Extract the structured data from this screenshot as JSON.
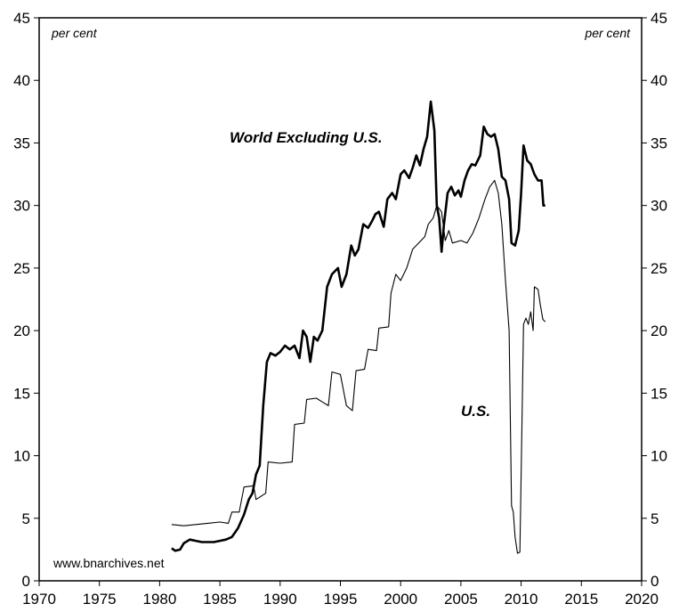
{
  "chart_data": {
    "type": "line",
    "title": "",
    "xlabel": "",
    "ylabel": "",
    "unit_left": "per cent",
    "unit_right": "per cent",
    "source": "www.bnarchives.net",
    "xlim": [
      1970,
      2020
    ],
    "ylim": [
      0,
      45
    ],
    "x_ticks": [
      1970,
      1975,
      1980,
      1985,
      1990,
      1995,
      2000,
      2005,
      2010,
      2015,
      2020
    ],
    "y_ticks": [
      0,
      5,
      10,
      15,
      20,
      25,
      30,
      35,
      40,
      45
    ],
    "grid": false,
    "series": [
      {
        "name": "World Excluding U.S.",
        "style": "thick",
        "points": [
          [
            1981.0,
            2.6
          ],
          [
            1981.3,
            2.4
          ],
          [
            1981.7,
            2.5
          ],
          [
            1982.0,
            3.0
          ],
          [
            1982.5,
            3.3
          ],
          [
            1983.0,
            3.2
          ],
          [
            1983.5,
            3.1
          ],
          [
            1984.0,
            3.1
          ],
          [
            1984.5,
            3.1
          ],
          [
            1985.0,
            3.2
          ],
          [
            1985.5,
            3.3
          ],
          [
            1986.0,
            3.5
          ],
          [
            1986.5,
            4.2
          ],
          [
            1987.0,
            5.3
          ],
          [
            1987.4,
            6.5
          ],
          [
            1987.7,
            7.0
          ],
          [
            1988.0,
            8.5
          ],
          [
            1988.3,
            9.2
          ],
          [
            1988.6,
            14.0
          ],
          [
            1988.9,
            17.5
          ],
          [
            1989.2,
            18.2
          ],
          [
            1989.6,
            18.0
          ],
          [
            1990.0,
            18.3
          ],
          [
            1990.4,
            18.8
          ],
          [
            1990.8,
            18.5
          ],
          [
            1991.2,
            18.8
          ],
          [
            1991.6,
            17.8
          ],
          [
            1991.9,
            20.0
          ],
          [
            1992.2,
            19.5
          ],
          [
            1992.5,
            17.5
          ],
          [
            1992.8,
            19.5
          ],
          [
            1993.1,
            19.2
          ],
          [
            1993.5,
            20.0
          ],
          [
            1993.9,
            23.5
          ],
          [
            1994.3,
            24.5
          ],
          [
            1994.8,
            25.0
          ],
          [
            1995.1,
            23.5
          ],
          [
            1995.5,
            24.5
          ],
          [
            1995.9,
            26.8
          ],
          [
            1996.2,
            26.0
          ],
          [
            1996.5,
            26.5
          ],
          [
            1996.9,
            28.5
          ],
          [
            1997.3,
            28.2
          ],
          [
            1997.6,
            28.7
          ],
          [
            1997.9,
            29.3
          ],
          [
            1998.2,
            29.5
          ],
          [
            1998.6,
            28.3
          ],
          [
            1998.9,
            30.5
          ],
          [
            1999.3,
            31.0
          ],
          [
            1999.6,
            30.5
          ],
          [
            2000.0,
            32.5
          ],
          [
            2000.3,
            32.8
          ],
          [
            2000.7,
            32.2
          ],
          [
            2001.0,
            33.0
          ],
          [
            2001.3,
            34.0
          ],
          [
            2001.6,
            33.2
          ],
          [
            2001.9,
            34.5
          ],
          [
            2002.2,
            35.5
          ],
          [
            2002.5,
            38.3
          ],
          [
            2002.8,
            36.0
          ],
          [
            2003.0,
            30.0
          ],
          [
            2003.2,
            29.0
          ],
          [
            2003.4,
            26.3
          ],
          [
            2003.6,
            28.5
          ],
          [
            2003.9,
            31.0
          ],
          [
            2004.2,
            31.5
          ],
          [
            2004.5,
            30.8
          ],
          [
            2004.8,
            31.2
          ],
          [
            2005.0,
            30.7
          ],
          [
            2005.3,
            32.0
          ],
          [
            2005.6,
            32.8
          ],
          [
            2005.9,
            33.3
          ],
          [
            2006.2,
            33.2
          ],
          [
            2006.6,
            34.0
          ],
          [
            2006.9,
            36.3
          ],
          [
            2007.2,
            35.7
          ],
          [
            2007.5,
            35.5
          ],
          [
            2007.8,
            35.7
          ],
          [
            2008.1,
            34.5
          ],
          [
            2008.4,
            32.3
          ],
          [
            2008.7,
            32.0
          ],
          [
            2009.0,
            30.5
          ],
          [
            2009.2,
            27.0
          ],
          [
            2009.5,
            26.8
          ],
          [
            2009.8,
            28.0
          ],
          [
            2010.0,
            31.0
          ],
          [
            2010.2,
            34.8
          ],
          [
            2010.5,
            33.6
          ],
          [
            2010.8,
            33.3
          ],
          [
            2011.1,
            32.5
          ],
          [
            2011.4,
            32.0
          ],
          [
            2011.7,
            32.0
          ],
          [
            2011.85,
            30.0
          ],
          [
            2012.0,
            30.0
          ]
        ]
      },
      {
        "name": "U.S.",
        "style": "thin",
        "points": [
          [
            1981.0,
            4.5
          ],
          [
            1982.0,
            4.4
          ],
          [
            1983.0,
            4.5
          ],
          [
            1984.0,
            4.6
          ],
          [
            1985.0,
            4.7
          ],
          [
            1985.7,
            4.6
          ],
          [
            1986.0,
            5.5
          ],
          [
            1986.6,
            5.5
          ],
          [
            1987.0,
            7.5
          ],
          [
            1987.8,
            7.6
          ],
          [
            1988.0,
            6.5
          ],
          [
            1988.8,
            7.0
          ],
          [
            1989.0,
            9.5
          ],
          [
            1990.0,
            9.4
          ],
          [
            1991.0,
            9.5
          ],
          [
            1991.2,
            12.5
          ],
          [
            1992.0,
            12.6
          ],
          [
            1992.2,
            14.5
          ],
          [
            1993.0,
            14.6
          ],
          [
            1993.5,
            14.3
          ],
          [
            1994.0,
            14.0
          ],
          [
            1994.3,
            16.7
          ],
          [
            1995.0,
            16.5
          ],
          [
            1995.5,
            14.0
          ],
          [
            1996.0,
            13.6
          ],
          [
            1996.3,
            16.8
          ],
          [
            1997.0,
            16.9
          ],
          [
            1997.3,
            18.5
          ],
          [
            1998.0,
            18.4
          ],
          [
            1998.2,
            20.2
          ],
          [
            1999.0,
            20.3
          ],
          [
            1999.2,
            23.0
          ],
          [
            1999.6,
            24.5
          ],
          [
            2000.0,
            24.0
          ],
          [
            2000.5,
            25.0
          ],
          [
            2001.0,
            26.5
          ],
          [
            2001.5,
            27.0
          ],
          [
            2002.0,
            27.5
          ],
          [
            2002.3,
            28.5
          ],
          [
            2002.7,
            29.0
          ],
          [
            2003.0,
            30.0
          ],
          [
            2003.4,
            29.5
          ],
          [
            2003.7,
            27.2
          ],
          [
            2004.0,
            28.0
          ],
          [
            2004.3,
            27.0
          ],
          [
            2005.0,
            27.2
          ],
          [
            2005.5,
            27.0
          ],
          [
            2006.0,
            27.8
          ],
          [
            2006.5,
            29.0
          ],
          [
            2007.0,
            30.5
          ],
          [
            2007.4,
            31.5
          ],
          [
            2007.8,
            32.0
          ],
          [
            2008.1,
            31.0
          ],
          [
            2008.4,
            28.5
          ],
          [
            2008.7,
            24.0
          ],
          [
            2009.0,
            20.0
          ],
          [
            2009.2,
            6.0
          ],
          [
            2009.35,
            5.5
          ],
          [
            2009.5,
            3.5
          ],
          [
            2009.7,
            2.2
          ],
          [
            2009.9,
            2.3
          ],
          [
            2010.05,
            11.5
          ],
          [
            2010.2,
            20.5
          ],
          [
            2010.4,
            21.0
          ],
          [
            2010.6,
            20.5
          ],
          [
            2010.8,
            21.5
          ],
          [
            2011.0,
            20.0
          ],
          [
            2011.1,
            23.5
          ],
          [
            2011.4,
            23.3
          ],
          [
            2011.6,
            22.0
          ],
          [
            2011.8,
            20.9
          ],
          [
            2012.0,
            20.7
          ]
        ]
      }
    ]
  }
}
